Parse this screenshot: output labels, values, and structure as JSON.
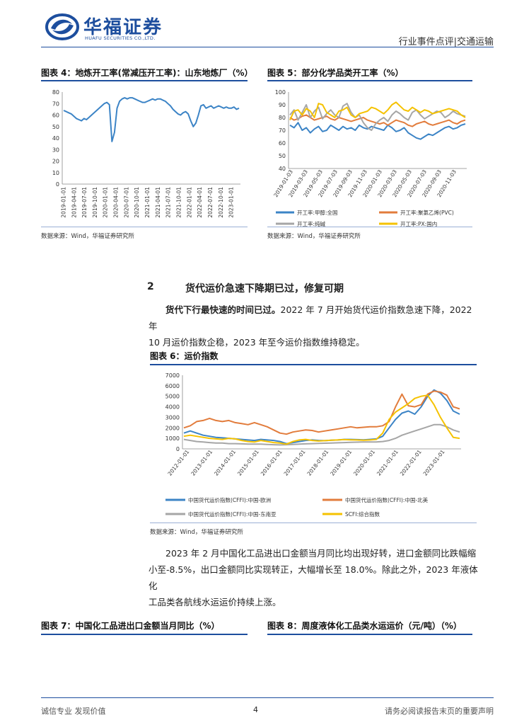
{
  "header": {
    "logo_cn": "华福证券",
    "logo_en": "HUAFU SECURITIES CO.,LTD.",
    "report_type": "行业事件点评|交通运输",
    "brand_color": "#1d4e9e"
  },
  "fig4": {
    "title": "图表 4：地炼开工率(常减压开工率)：山东地炼厂（%）",
    "source": "数据来源：Wind，华福证券研究所"
  },
  "fig5": {
    "title": "图表 5：部分化学品类开工率（%）",
    "source": "数据来源：Wind，华福证券研究所"
  },
  "section2": {
    "number": "2",
    "title": "货代运价急速下降期已过，修复可期",
    "para1_bold": "货代下行最快速的时间已过。",
    "para1_rest": "2022 年 7 月开始货代运价指数急速下降，2022 年",
    "para1_line2": "10 月运价指数企稳，2023 年至今运价指数维持稳定。"
  },
  "fig6": {
    "title": "图表 6：运价指数",
    "source": "数据来源：Wind，华福证券研究所"
  },
  "para2": {
    "line1": "2023 年 2 月中国化工品进出口金额当月同比均出现好转，进口金额同比跌幅缩",
    "line2": "小至-8.5%，出口金额同比实现转正，大幅增长至 18.0%。除此之外，2023 年液体化",
    "line3": "工品类各航线水运运价持续上涨。"
  },
  "fig7": {
    "title": "图表 7：中国化工品进出口金额当月同比（%）"
  },
  "fig8": {
    "title": "图表 8：周度液体化工品类水运运价（元/吨）（%）"
  },
  "footer": {
    "left": "诚信专业  发现价值",
    "page": "4",
    "right": "请务必阅读报告末页的重要声明"
  },
  "chart_data": [
    {
      "type": "line",
      "id": "fig4",
      "ylim": [
        0,
        80
      ],
      "yticks": [
        "0",
        "10",
        "20",
        "30",
        "40",
        "50",
        "60",
        "70",
        "80"
      ],
      "xticks": [
        "2019-01-01",
        "2019-04-01",
        "2019-07-01",
        "2019-10-01",
        "2020-01-01",
        "2020-04-01",
        "2020-07-01",
        "2020-10-01",
        "2021-01-01",
        "2021-04-01",
        "2021-07-01",
        "2021-10-01",
        "2022-01-01",
        "2022-04-01",
        "2022-07-01",
        "2022-10-01",
        "2023-01-01"
      ],
      "series": [
        {
          "color": "#3c84c6",
          "values": [
            64,
            63,
            62,
            61,
            59,
            57,
            56,
            55,
            57,
            56,
            58,
            60,
            62,
            64,
            66,
            68,
            70,
            71,
            69,
            37,
            45,
            66,
            72,
            74,
            75,
            74,
            75,
            75,
            74,
            73,
            72,
            71,
            71,
            72,
            73,
            74,
            73,
            74,
            74,
            73,
            72,
            70,
            68,
            65,
            63,
            61,
            60,
            62,
            63,
            61,
            55,
            50,
            53,
            60,
            68,
            69,
            66,
            67,
            68,
            66,
            67,
            68,
            67,
            66,
            67,
            66,
            66,
            67,
            65,
            66
          ]
        }
      ]
    },
    {
      "type": "line",
      "id": "fig5",
      "ylim": [
        40,
        100
      ],
      "yticks": [
        "40",
        "50",
        "60",
        "70",
        "80",
        "90",
        "100"
      ],
      "xticks": [
        "2019-01-03",
        "2019-03-03",
        "2019-05-03",
        "2019-07-03",
        "2019-09-03",
        "2019-11-03",
        "2020-01-03",
        "2020-03-03",
        "2020-05-03",
        "2020-07-03",
        "2020-09-03",
        "2020-11-03"
      ],
      "series": [
        {
          "name": "开工率:甲醇:全国",
          "color": "#3c84c6",
          "values": [
            74,
            72,
            76,
            70,
            72,
            68,
            71,
            73,
            69,
            70,
            74,
            72,
            70,
            73,
            71,
            72,
            70,
            74,
            72,
            71,
            73,
            72,
            71,
            70,
            74,
            72,
            69,
            70,
            72,
            68,
            66,
            64,
            63,
            65,
            67,
            66,
            68,
            70,
            72,
            73,
            71,
            72,
            74,
            75
          ]
        },
        {
          "name": "开工率:聚氯乙烯(PVC)",
          "color": "#e27c3c",
          "values": [
            80,
            78,
            79,
            81,
            82,
            80,
            78,
            79,
            80,
            81,
            79,
            78,
            80,
            79,
            78,
            77,
            78,
            79,
            80,
            78,
            77,
            76,
            75,
            76,
            74,
            76,
            78,
            77,
            76,
            74,
            73,
            75,
            76,
            77,
            75,
            74,
            75,
            76,
            77,
            78,
            76,
            75,
            77,
            78
          ]
        },
        {
          "name": "开工率:纯碱",
          "color": "#a6a6a6",
          "values": [
            82,
            86,
            78,
            84,
            90,
            80,
            85,
            88,
            79,
            83,
            86,
            82,
            80,
            89,
            91,
            84,
            80,
            82,
            76,
            72,
            70,
            75,
            78,
            80,
            77,
            82,
            85,
            83,
            80,
            78,
            84,
            86,
            82,
            79,
            81,
            83,
            85,
            84,
            80,
            82,
            85,
            83,
            82,
            81
          ]
        },
        {
          "name": "开工率:PX:国内",
          "color": "#f5c200",
          "values": [
            78,
            85,
            86,
            82,
            87,
            85,
            80,
            91,
            90,
            84,
            82,
            80,
            85,
            86,
            88,
            82,
            80,
            83,
            84,
            85,
            88,
            87,
            85,
            83,
            86,
            90,
            92,
            89,
            86,
            85,
            88,
            86,
            84,
            86,
            85,
            83,
            84,
            85,
            86,
            87,
            86,
            85,
            82,
            80
          ]
        }
      ]
    },
    {
      "type": "line",
      "id": "fig6",
      "ylim": [
        0,
        7000
      ],
      "yticks": [
        "0",
        "1000",
        "2000",
        "3000",
        "4000",
        "5000",
        "6000",
        "7000"
      ],
      "xticks": [
        "2012-01-01",
        "2013-01-01",
        "2014-01-01",
        "2015-01-01",
        "2016-01-01",
        "2017-01-01",
        "2018-01-01",
        "2019-01-01",
        "2020-01-01",
        "2021-01-01",
        "2022-01-01",
        "2023-01-01"
      ],
      "series": [
        {
          "name": "中国货代运价指数(CFFI):中国-欧洲",
          "color": "#3c84c6",
          "values": [
            1500,
            1700,
            1500,
            1300,
            1200,
            1100,
            1050,
            1000,
            950,
            900,
            850,
            800,
            900,
            850,
            800,
            700,
            500,
            600,
            700,
            800,
            850,
            800,
            780,
            820,
            850,
            900,
            900,
            880,
            860,
            900,
            950,
            1200,
            2000,
            2800,
            3400,
            3600,
            3300,
            4000,
            5000,
            5600,
            5300,
            4600,
            3600,
            3300
          ]
        },
        {
          "name": "中国货代运价指数(CFFI):中国-北美",
          "color": "#e27c3c",
          "values": [
            2000,
            2200,
            2600,
            2700,
            2900,
            2700,
            2600,
            2700,
            2500,
            2400,
            2300,
            2500,
            2300,
            2100,
            1800,
            1500,
            1400,
            1600,
            1700,
            1800,
            1750,
            1600,
            1700,
            1800,
            1900,
            2000,
            2100,
            2000,
            2050,
            2100,
            2100,
            2200,
            2600,
            4000,
            5200,
            4100,
            4000,
            4200,
            5200,
            5500,
            5400,
            5100,
            4000,
            3800
          ]
        },
        {
          "name": "中国货代运价指数(CFFI):中国-东南亚",
          "color": "#a6a6a6",
          "values": [
            900,
            800,
            700,
            650,
            600,
            550,
            550,
            500,
            500,
            480,
            460,
            450,
            450,
            420,
            400,
            380,
            400,
            420,
            450,
            480,
            500,
            520,
            540,
            560,
            580,
            600,
            620,
            640,
            660,
            650,
            660,
            700,
            800,
            1000,
            1300,
            1500,
            1700,
            1900,
            2100,
            2300,
            2300,
            2100,
            1800,
            1600
          ]
        },
        {
          "name": "SCFI:综合指数",
          "color": "#f5c200",
          "values": [
            1200,
            1300,
            1200,
            1100,
            1000,
            950,
            900,
            1000,
            950,
            800,
            700,
            650,
            800,
            700,
            600,
            550,
            450,
            700,
            850,
            900,
            800,
            750,
            780,
            820,
            850,
            880,
            860,
            850,
            820,
            850,
            900,
            1500,
            2800,
            3500,
            3900,
            4300,
            4800,
            5000,
            5100,
            4200,
            3000,
            2000,
            1100,
            1000
          ]
        }
      ]
    }
  ]
}
